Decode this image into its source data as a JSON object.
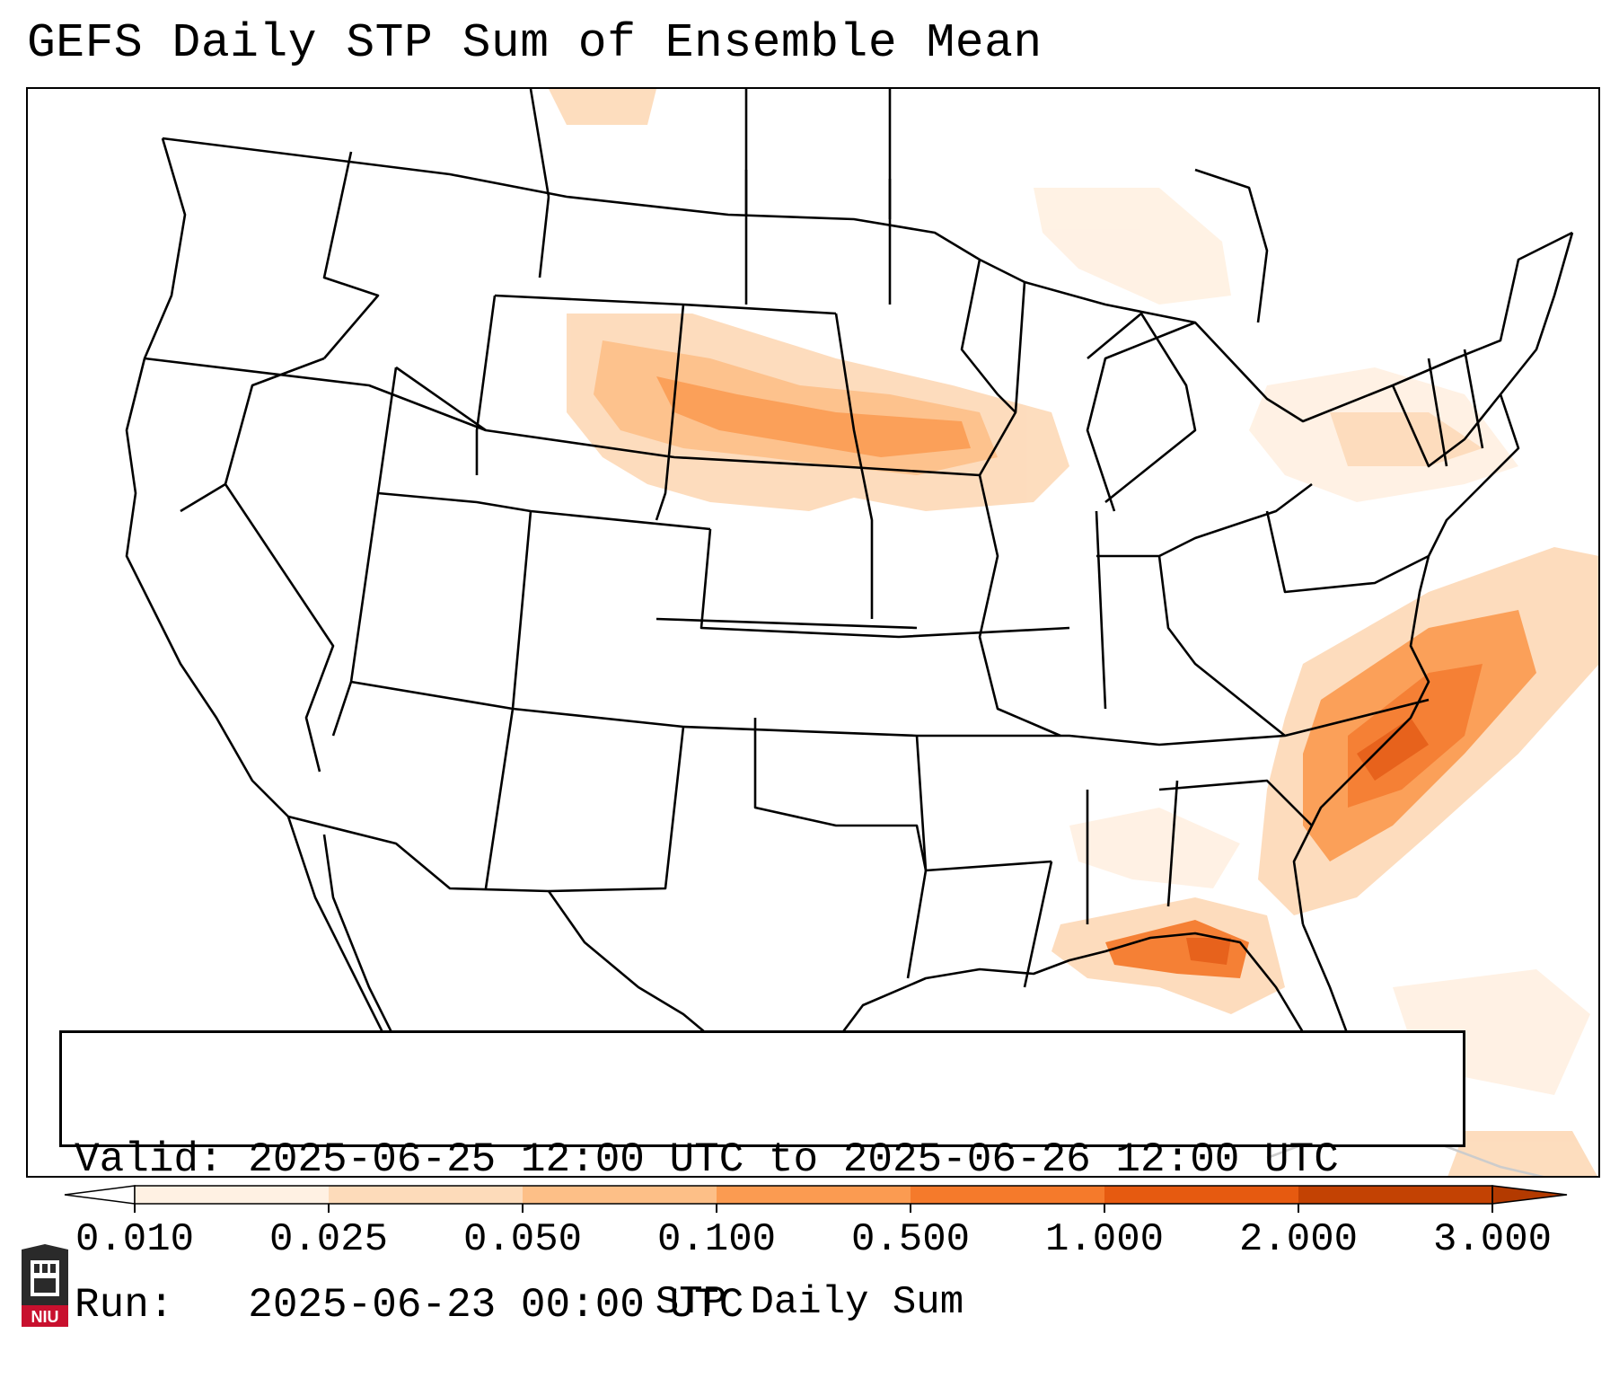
{
  "title": "GEFS Daily STP Sum of Ensemble Mean",
  "info": {
    "valid": "Valid: 2025-06-25 12:00 UTC to 2025-06-26 12:00 UTC",
    "run": "Run:   2025-06-23 00:00 UTC"
  },
  "colorbar": {
    "label": "STP Daily Sum",
    "ticks": [
      "0.010",
      "0.025",
      "0.050",
      "0.100",
      "0.500",
      "1.000",
      "2.000",
      "3.000"
    ],
    "colors": [
      "#fff1e3",
      "#fddbba",
      "#fdbf87",
      "#fb9b51",
      "#f57a2b",
      "#e65a10",
      "#c34203"
    ],
    "extend": "both"
  },
  "logo": {
    "text": "NIU",
    "name": "niu-logo"
  },
  "colors": {
    "map_outline": "#000000",
    "frame": "#000000"
  }
}
